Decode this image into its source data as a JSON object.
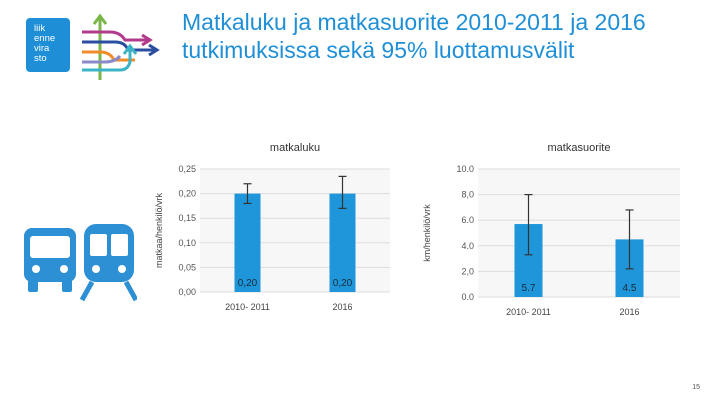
{
  "header": {
    "title": "Matkaluku ja matkasuorite 2010-2011 ja 2016 tutkimuksissa sekä 95% luottamusvälit"
  },
  "logo": {
    "lines": [
      "liik",
      "enne",
      "vira",
      "sto"
    ],
    "color": "#1e8fd6"
  },
  "icons": [
    "bus-icon",
    "train-icon"
  ],
  "footer": {
    "page_number": "15"
  },
  "colors": {
    "accent": "#1e8fd6",
    "bar": "#1f96d9",
    "error": "#333333",
    "vehicle": "#2d8fd4"
  },
  "chart_data": [
    {
      "type": "bar",
      "title": "matkaluku",
      "ylabel": "matkaa/henkilö/vrk",
      "xlabel": "",
      "categories": [
        "2010- 2011",
        "2016"
      ],
      "values": [
        0.2,
        0.2
      ],
      "value_labels": [
        "0,20",
        "0,20"
      ],
      "error_low": [
        0.18,
        0.17
      ],
      "error_high": [
        0.22,
        0.235
      ],
      "ylim": [
        0,
        0.25
      ],
      "yticks": [
        0,
        0.05,
        0.1,
        0.15,
        0.2,
        0.25
      ],
      "ytick_labels": [
        "0,00",
        "0,05",
        "0,10",
        "0,15",
        "0,20",
        "0,25"
      ],
      "grid": true,
      "legend": "none"
    },
    {
      "type": "bar",
      "title": "matkasuorite",
      "ylabel": "km/henkilö/vrk",
      "xlabel": "",
      "categories": [
        "2010- 2011",
        "2016"
      ],
      "values": [
        5.7,
        4.5
      ],
      "value_labels": [
        "5.7",
        "4.5"
      ],
      "error_low": [
        3.3,
        2.2
      ],
      "error_high": [
        8.0,
        6.8
      ],
      "ylim": [
        0,
        10
      ],
      "yticks": [
        0,
        2,
        4,
        6,
        8,
        10
      ],
      "ytick_labels": [
        "0.0",
        "2,0",
        "4.0",
        "6.0",
        "8,0",
        "10.0"
      ],
      "grid": true,
      "legend": "none"
    }
  ]
}
